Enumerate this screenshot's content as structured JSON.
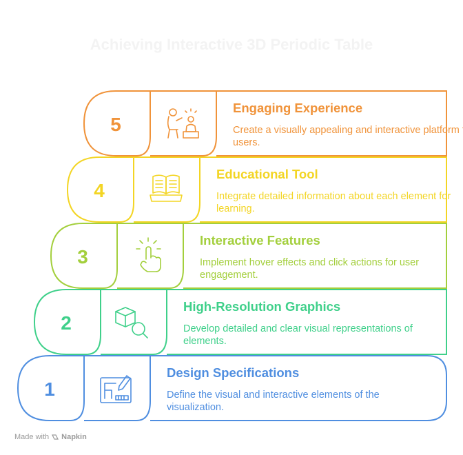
{
  "title": "Achieving Interactive 3D Periodic Table",
  "steps": [
    {
      "number": "5",
      "title": "Engaging Experience",
      "description": "Create a visually appealing and interactive platform for users.",
      "color": "#f0933a",
      "icon": "teacher-student-icon"
    },
    {
      "number": "4",
      "title": "Educational Tool",
      "description": "Integrate detailed information about each element for learning.",
      "color": "#f3d524",
      "icon": "open-book-icon"
    },
    {
      "number": "3",
      "title": "Interactive Features",
      "description": "Implement hover effects and click actions for user engagement.",
      "color": "#a3cf3c",
      "icon": "tap-hand-icon"
    },
    {
      "number": "2",
      "title": "High-Resolution Graphics",
      "description": "Develop detailed and clear visual representations of elements.",
      "color": "#3fd08a",
      "icon": "cube-magnifier-icon"
    },
    {
      "number": "1",
      "title": "Design Specifications",
      "description": "Define the visual and interactive elements of the visualization.",
      "color": "#4f8ee0",
      "icon": "blueprint-pencil-icon"
    }
  ],
  "footer": {
    "made_with": "Made with",
    "brand": "Napkin"
  }
}
